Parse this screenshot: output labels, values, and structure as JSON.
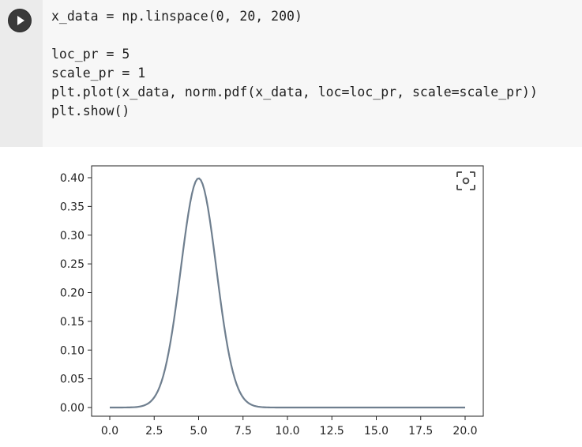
{
  "code_cell": {
    "lines": [
      "x_data = np.linspace(0, 20, 200)",
      "",
      "loc_pr = 5",
      "scale_pr = 1",
      "plt.plot(x_data, norm.pdf(x_data, loc=loc_pr, scale=scale_pr))",
      "plt.show()"
    ],
    "run_icon": "play-icon"
  },
  "output_toolbar": {
    "icon": "screenshot-icon"
  },
  "chart_data": {
    "type": "line",
    "series": [
      {
        "distribution": "normal pdf",
        "loc": 5,
        "scale": 1,
        "x_start": 0,
        "x_end": 20,
        "num_points": 200,
        "color": "#6f7f8f"
      }
    ],
    "xlim": [
      0,
      20
    ],
    "ylim": [
      0,
      0.4
    ],
    "xticks": [
      "0.0",
      "2.5",
      "5.0",
      "7.5",
      "10.0",
      "12.5",
      "15.0",
      "17.5",
      "20.0"
    ],
    "yticks": [
      "0.00",
      "0.05",
      "0.10",
      "0.15",
      "0.20",
      "0.25",
      "0.30",
      "0.35",
      "0.40"
    ],
    "grid": false
  }
}
